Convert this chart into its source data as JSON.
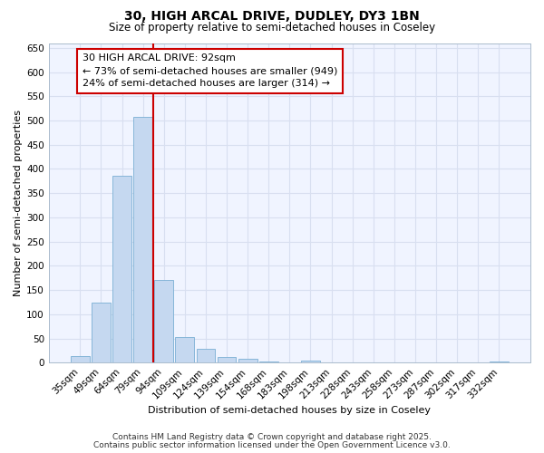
{
  "title1": "30, HIGH ARCAL DRIVE, DUDLEY, DY3 1BN",
  "title2": "Size of property relative to semi-detached houses in Coseley",
  "xlabel": "Distribution of semi-detached houses by size in Coseley",
  "ylabel": "Number of semi-detached properties",
  "bar_labels": [
    "35sqm",
    "49sqm",
    "64sqm",
    "79sqm",
    "94sqm",
    "109sqm",
    "124sqm",
    "139sqm",
    "154sqm",
    "168sqm",
    "183sqm",
    "198sqm",
    "213sqm",
    "228sqm",
    "243sqm",
    "258sqm",
    "273sqm",
    "287sqm",
    "302sqm",
    "317sqm",
    "332sqm"
  ],
  "bar_values": [
    13,
    123,
    385,
    507,
    170,
    53,
    28,
    12,
    7,
    2,
    0,
    5,
    0,
    0,
    0,
    0,
    0,
    0,
    0,
    0,
    3
  ],
  "bar_color": "#c5d8f0",
  "bar_edgecolor": "#7aafd4",
  "vline_x": 3.5,
  "vline_color": "#cc0000",
  "ann_line1": "30 HIGH ARCAL DRIVE: 92sqm",
  "ann_line2": "← 73% of semi-detached houses are smaller (949)",
  "ann_line3": "24% of semi-detached houses are larger (314) →",
  "annotation_box_edgecolor": "#cc0000",
  "ylim": [
    0,
    660
  ],
  "yticks": [
    0,
    50,
    100,
    150,
    200,
    250,
    300,
    350,
    400,
    450,
    500,
    550,
    600,
    650
  ],
  "bg_color": "#ffffff",
  "plot_bg_color": "#f0f4ff",
  "grid_color": "#d8dff0",
  "footer_text1": "Contains HM Land Registry data © Crown copyright and database right 2025.",
  "footer_text2": "Contains public sector information licensed under the Open Government Licence v3.0.",
  "title_fontsize": 10,
  "subtitle_fontsize": 8.5,
  "axis_label_fontsize": 8,
  "tick_label_fontsize": 7.5,
  "ann_fontsize": 8
}
